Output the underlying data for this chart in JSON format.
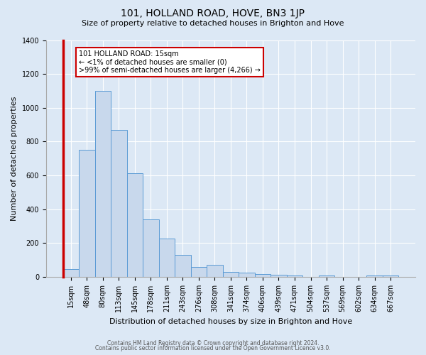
{
  "title": "101, HOLLAND ROAD, HOVE, BN3 1JP",
  "subtitle": "Size of property relative to detached houses in Brighton and Hove",
  "xlabel": "Distribution of detached houses by size in Brighton and Hove",
  "ylabel": "Number of detached properties",
  "footnote1": "Contains HM Land Registry data © Crown copyright and database right 2024.",
  "footnote2": "Contains public sector information licensed under the Open Government Licence v3.0.",
  "categories": [
    "15sqm",
    "48sqm",
    "80sqm",
    "113sqm",
    "145sqm",
    "178sqm",
    "211sqm",
    "243sqm",
    "276sqm",
    "308sqm",
    "341sqm",
    "374sqm",
    "406sqm",
    "439sqm",
    "471sqm",
    "504sqm",
    "537sqm",
    "569sqm",
    "602sqm",
    "634sqm",
    "667sqm"
  ],
  "values": [
    45,
    750,
    1100,
    870,
    615,
    340,
    225,
    130,
    60,
    70,
    30,
    25,
    18,
    12,
    10,
    0,
    8,
    0,
    0,
    8,
    10
  ],
  "bar_color": "#c8d8ec",
  "bar_edge_color": "#5b9bd5",
  "background_color": "#dce8f5",
  "ylim": [
    0,
    1400
  ],
  "yticks": [
    0,
    200,
    400,
    600,
    800,
    1000,
    1200,
    1400
  ],
  "annotation_line1": "101 HOLLAND ROAD: 15sqm",
  "annotation_line2": "← <1% of detached houses are smaller (0)",
  "annotation_line3": ">99% of semi-detached houses are larger (4,266) →",
  "annotation_box_color": "white",
  "annotation_box_edge_color": "#cc0000",
  "red_line_color": "#cc0000",
  "title_fontsize": 10,
  "subtitle_fontsize": 8,
  "ylabel_fontsize": 8,
  "xlabel_fontsize": 8,
  "tick_fontsize": 7,
  "annotation_fontsize": 7,
  "footnote_fontsize": 5.5
}
